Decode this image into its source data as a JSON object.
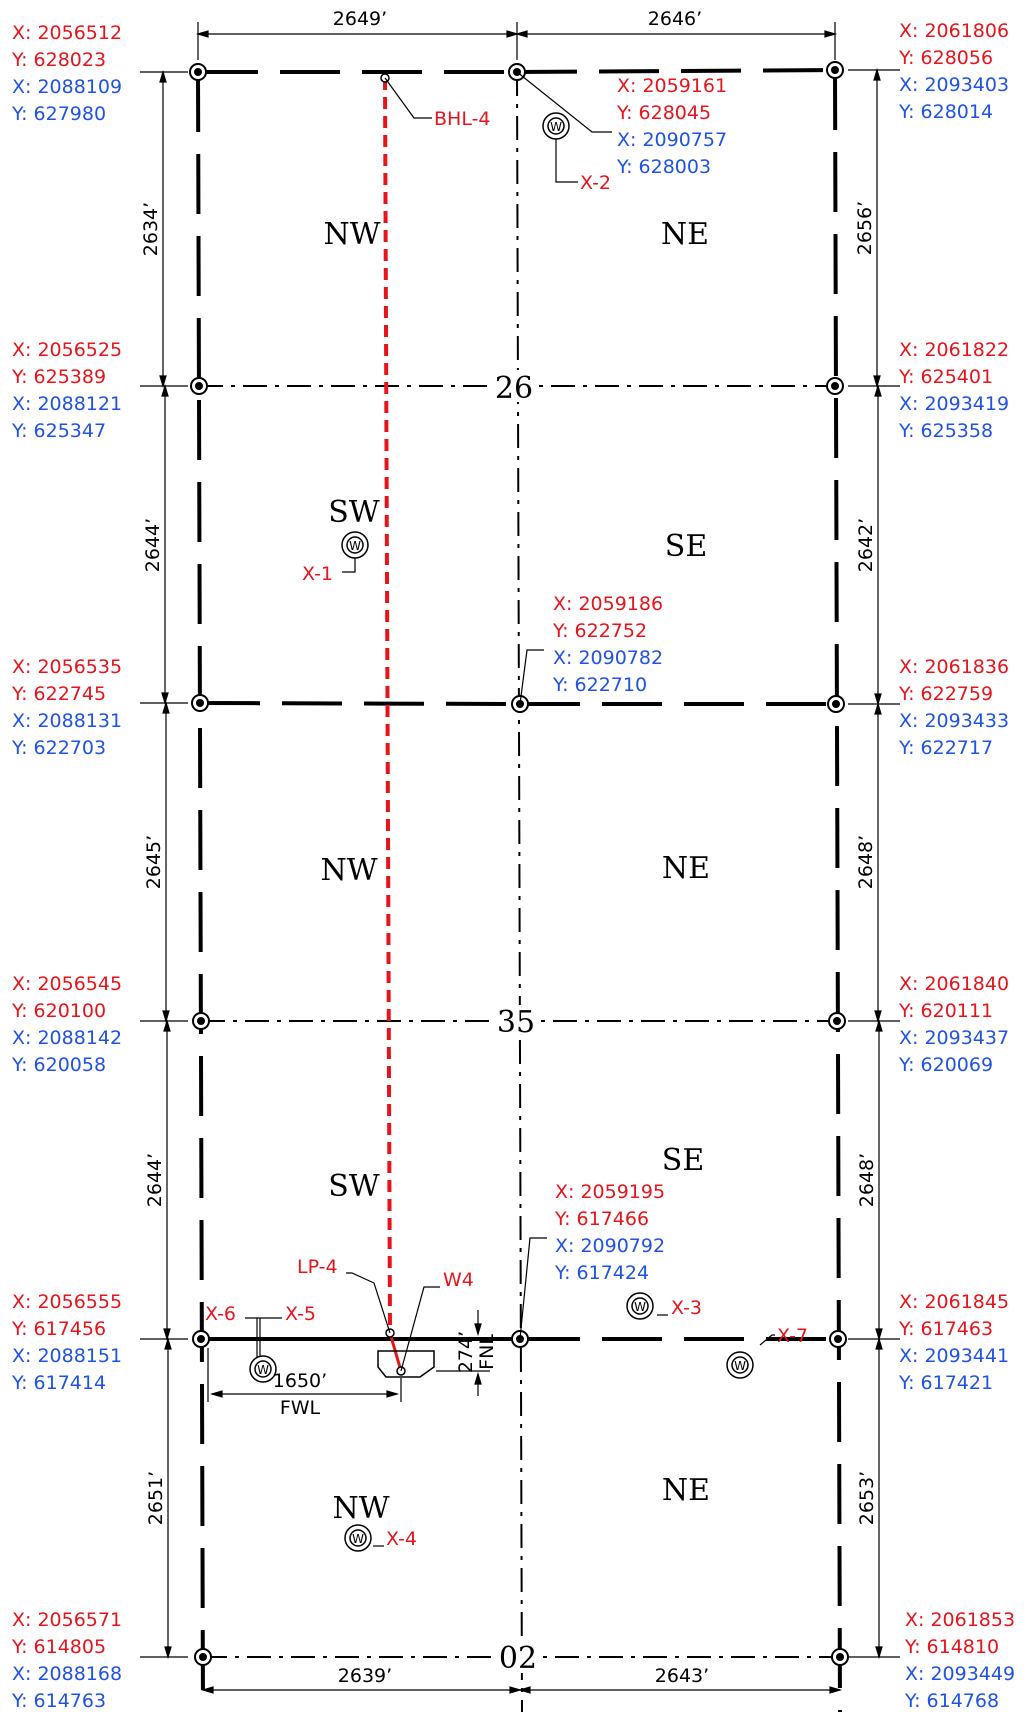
{
  "corners": [
    {
      "id": "nw-26",
      "x_nad27": "X: 2056512",
      "y_nad27": "Y: 628023",
      "x_nad83": "X: 2088109",
      "y_nad83": "Y: 627980"
    },
    {
      "id": "n-26",
      "x_nad27": "X: 2059161",
      "y_nad27": "Y: 628045",
      "x_nad83": "X: 2090757",
      "y_nad83": "Y: 628003"
    },
    {
      "id": "ne-26",
      "x_nad27": "X: 2061806",
      "y_nad27": "Y: 628056",
      "x_nad83": "X: 2093403",
      "y_nad83": "Y: 628014"
    },
    {
      "id": "w-26",
      "x_nad27": "X: 2056525",
      "y_nad27": "Y: 625389",
      "x_nad83": "X: 2088121",
      "y_nad83": "Y: 625347"
    },
    {
      "id": "e-26",
      "x_nad27": "X: 2061822",
      "y_nad27": "Y: 625401",
      "x_nad83": "X: 2093419",
      "y_nad83": "Y: 625358"
    },
    {
      "id": "sw-26",
      "x_nad27": "X: 2056535",
      "y_nad27": "Y: 622745",
      "x_nad83": "X: 2088131",
      "y_nad83": "Y: 622703"
    },
    {
      "id": "s-26",
      "x_nad27": "X: 2059186",
      "y_nad27": "Y: 622752",
      "x_nad83": "X: 2090782",
      "y_nad83": "Y: 622710"
    },
    {
      "id": "se-26",
      "x_nad27": "X: 2061836",
      "y_nad27": "Y: 622759",
      "x_nad83": "X: 2093433",
      "y_nad83": "Y: 622717"
    },
    {
      "id": "w-35",
      "x_nad27": "X: 2056545",
      "y_nad27": "Y: 620100",
      "x_nad83": "X: 2088142",
      "y_nad83": "Y: 620058"
    },
    {
      "id": "e-35",
      "x_nad27": "X: 2061840",
      "y_nad27": "Y: 620111",
      "x_nad83": "X: 2093437",
      "y_nad83": "Y: 620069"
    },
    {
      "id": "sw-35",
      "x_nad27": "X: 2056555",
      "y_nad27": "Y: 617456",
      "x_nad83": "X: 2088151",
      "y_nad83": "Y: 617414"
    },
    {
      "id": "s-35",
      "x_nad27": "X: 2059195",
      "y_nad27": "Y: 617466",
      "x_nad83": "X: 2090792",
      "y_nad83": "Y: 617424"
    },
    {
      "id": "se-35",
      "x_nad27": "X: 2061845",
      "y_nad27": "Y: 617463",
      "x_nad83": "X: 2093441",
      "y_nad83": "Y: 617421"
    },
    {
      "id": "w-02",
      "x_nad27": "X: 2056571",
      "y_nad27": "Y: 614805",
      "x_nad83": "X: 2088168",
      "y_nad83": "Y: 614763"
    },
    {
      "id": "e-02",
      "x_nad27": "X: 2061853",
      "y_nad27": "Y: 614810",
      "x_nad83": "X: 2093449",
      "y_nad83": "Y: 614768"
    }
  ],
  "dimensions": {
    "top_left": "2649’",
    "top_right": "2646’",
    "bottom_left": "2639’",
    "bottom_right": "2643’",
    "left": [
      "2634’",
      "2644’",
      "2645’",
      "2644’",
      "2651’"
    ],
    "right": [
      "2656’",
      "2642’",
      "2648’",
      "2648’",
      "2653’"
    ],
    "fwl_value": "1650’",
    "fwl_label": "FWL",
    "fnl_value": "274’",
    "fnl_label": "FNL"
  },
  "sections": {
    "upper": "26",
    "middle": "35",
    "lower": "02"
  },
  "quarters": {
    "q1_nw": "NW",
    "q1_ne": "NE",
    "q2_sw": "SW",
    "q2_se": "SE",
    "q3_nw": "NW",
    "q3_ne": "NE",
    "q4_sw": "SW",
    "q4_se": "SE",
    "q5_nw": "NW",
    "q5_ne": "NE"
  },
  "points": {
    "bhl": "BHL-4",
    "lp": "LP-4",
    "well": "W4",
    "x1": "X-1",
    "x2": "X-2",
    "x3": "X-3",
    "x4": "X-4",
    "x5": "X-5",
    "x6": "X-6",
    "x7": "X-7"
  },
  "colors": {
    "nad27": "#e8141b",
    "nad83": "#1f52e6",
    "lateral": "#e8141b",
    "lines": "#000000"
  }
}
